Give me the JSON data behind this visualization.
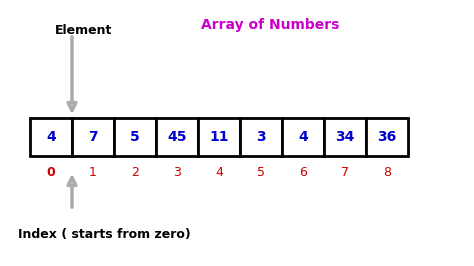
{
  "title": "Array of Numbers",
  "title_color": "#cc00cc",
  "title_fontsize": 10,
  "elements": [
    4,
    7,
    5,
    45,
    11,
    3,
    4,
    34,
    36
  ],
  "element_color": "#0000cc",
  "element_fontsize": 10,
  "index_color": "#cc0000",
  "index_fontsize": 9,
  "element_label": "Element",
  "element_label_color": "#000000",
  "element_label_fontsize": 9,
  "index_label": "Index ( starts from zero)",
  "index_label_color": "#000000",
  "index_label_fontsize": 9,
  "box_edge_color": "#000000",
  "box_fill_color": "#ffffff",
  "background_color": "#ffffff"
}
